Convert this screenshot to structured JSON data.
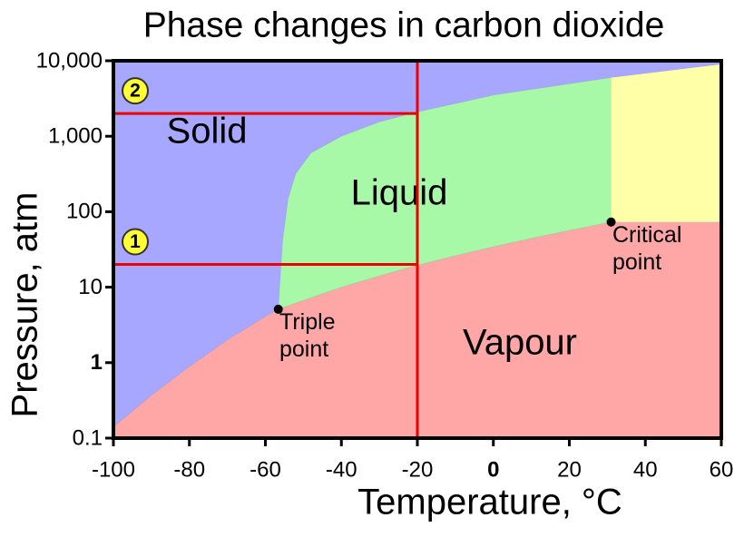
{
  "chart_data": {
    "type": "phase",
    "title": "Phase changes in carbon dioxide",
    "x_label": "Temperature, °C",
    "y_label": "Pressure, atm",
    "xlim": [
      -100,
      60
    ],
    "xticks": [
      -100,
      -80,
      -60,
      -40,
      -20,
      0,
      20,
      40,
      60
    ],
    "ylim": [
      0.1,
      10000
    ],
    "yticks": [
      0.1,
      1,
      10,
      100,
      {
        "value": 1000,
        "label": "1,000"
      },
      {
        "value": 10000,
        "label": "10,000"
      }
    ],
    "log_y": true,
    "regions": [
      {
        "label": "Solid",
        "color": "#a7a7ff"
      },
      {
        "label": "Liquid",
        "color": "#a7f9a7"
      },
      {
        "label": "Vapour",
        "color": "#ffa7a7"
      },
      {
        "color": "#ffffa7"
      }
    ],
    "curves": [
      {
        "x": [
          -100,
          -90,
          -80,
          -70,
          -60,
          -56.6
        ],
        "y": [
          0.14,
          0.37,
          0.89,
          2.0,
          4.1,
          5.1
        ]
      },
      {
        "x": [
          -56.6,
          -50,
          -40,
          -30,
          -20,
          -10,
          0,
          10,
          20,
          31
        ],
        "y": [
          5.1,
          6.7,
          10,
          14.1,
          19.5,
          26.1,
          34.4,
          44.4,
          56.5,
          73
        ]
      },
      {
        "x": [
          -56.6,
          -55.5,
          -54,
          -52,
          -48,
          -40,
          -30,
          -20,
          0,
          31,
          60
        ],
        "y": [
          5.1,
          40,
          150,
          320,
          600,
          1000,
          1550,
          2100,
          3500,
          6000,
          9000
        ]
      }
    ],
    "points": [
      {
        "label": "Triple point",
        "x": -56.6,
        "y": 5.1
      },
      {
        "label": "Critical point",
        "x": 31,
        "y": 73
      }
    ],
    "vlines": [
      -20
    ],
    "hlines": [
      {
        "y": 2000,
        "label": "2"
      },
      {
        "y": 20,
        "label": "1"
      }
    ],
    "line_color": "#ee0000"
  }
}
